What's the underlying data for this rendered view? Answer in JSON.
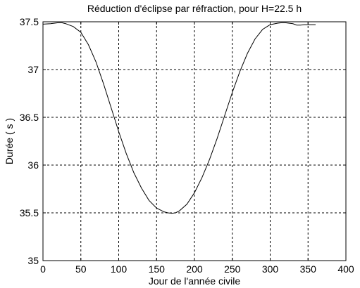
{
  "chart_data": {
    "type": "line",
    "title": "Réduction d'éclipse par réfraction, pour H=22.5 h",
    "xlabel": "Jour de l'année civile",
    "ylabel": "Durée ( s )",
    "xlim": [
      0,
      400
    ],
    "ylim": [
      35,
      37.5
    ],
    "xticks": [
      0,
      50,
      100,
      150,
      200,
      250,
      300,
      350,
      400
    ],
    "yticks": [
      35,
      35.5,
      36,
      36.5,
      37,
      37.5
    ],
    "xtick_labels": [
      "0",
      "50",
      "100",
      "150",
      "200",
      "250",
      "300",
      "350",
      "400"
    ],
    "ytick_labels": [
      "35",
      "35.5",
      "36",
      "36.5",
      "37",
      "37.5"
    ],
    "grid": true,
    "series": [
      {
        "x": [
          0,
          10,
          20,
          25,
          30,
          40,
          50,
          60,
          70,
          80,
          90,
          100,
          110,
          120,
          130,
          140,
          150,
          160,
          165,
          170,
          175,
          180,
          190,
          200,
          210,
          220,
          230,
          240,
          250,
          260,
          270,
          280,
          290,
          300,
          310,
          315,
          320,
          330,
          335,
          340,
          345,
          350,
          355,
          360
        ],
        "y": [
          37.475,
          37.48,
          37.49,
          37.49,
          37.48,
          37.45,
          37.39,
          37.26,
          37.08,
          36.85,
          36.6,
          36.35,
          36.12,
          35.92,
          35.76,
          35.63,
          35.55,
          35.51,
          35.5,
          35.495,
          35.5,
          35.52,
          35.59,
          35.71,
          35.87,
          36.06,
          36.28,
          36.52,
          36.76,
          36.98,
          37.17,
          37.32,
          37.42,
          37.47,
          37.485,
          37.49,
          37.49,
          37.48,
          37.465,
          37.465,
          37.47,
          37.47,
          37.47,
          37.47
        ],
        "color": "#000000"
      }
    ]
  }
}
